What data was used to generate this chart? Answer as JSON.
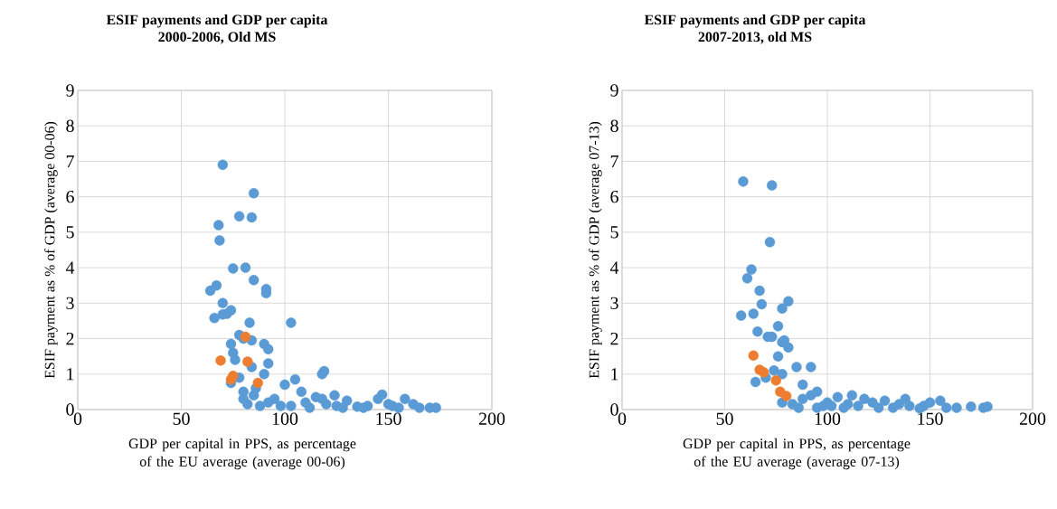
{
  "chart_data": [
    {
      "type": "scatter",
      "title": "ESIF payments and GDP per capita",
      "subtitle": "2000-2006, Old MS",
      "xlabel": "GDP per capital in PPS, as percentage of the EU average (average 00-06)",
      "ylabel": "ESIF payment as % of GDP (average 00-06)",
      "xlim": [
        0,
        200
      ],
      "xticks": [
        0,
        50,
        100,
        150,
        200
      ],
      "ylim": [
        0,
        9
      ],
      "yticks": [
        0,
        1,
        2,
        3,
        4,
        5,
        6,
        7,
        8,
        9
      ],
      "grid": true,
      "marker": "circle",
      "series": [
        {
          "color": "#5b9bd5",
          "x": [
            70,
            85,
            78,
            84,
            68,
            68.5,
            75,
            81,
            85,
            64,
            67,
            91,
            91,
            70,
            72,
            70,
            74,
            66,
            83,
            103,
            78,
            80,
            84,
            90,
            92,
            74,
            75,
            76,
            92,
            84,
            78,
            74,
            90,
            118,
            119,
            105,
            80,
            85,
            95,
            100,
            108,
            110,
            115,
            120,
            125,
            130,
            135,
            140,
            145,
            147,
            150,
            155,
            158,
            162,
            165,
            170,
            173,
            82,
            88,
            92,
            98,
            103,
            112,
            118,
            124,
            128,
            138,
            152,
            80,
            86
          ],
          "values": [
            6.9,
            6.1,
            5.45,
            5.42,
            5.2,
            4.77,
            3.98,
            4.0,
            3.65,
            3.35,
            3.5,
            3.4,
            3.28,
            3.0,
            2.7,
            2.68,
            2.8,
            2.58,
            2.45,
            2.45,
            2.1,
            2.0,
            1.95,
            1.85,
            1.7,
            1.85,
            1.6,
            1.4,
            1.3,
            1.2,
            0.9,
            0.75,
            1.0,
            1.0,
            1.08,
            0.85,
            0.5,
            0.4,
            0.3,
            0.7,
            0.5,
            0.2,
            0.35,
            0.15,
            0.1,
            0.25,
            0.08,
            0.1,
            0.3,
            0.42,
            0.15,
            0.05,
            0.3,
            0.15,
            0.05,
            0.05,
            0.05,
            0.15,
            0.1,
            0.2,
            0.1,
            0.1,
            0.05,
            0.3,
            0.4,
            0.05,
            0.05,
            0.1,
            0.3,
            0.6
          ]
        },
        {
          "color": "#ed7d31",
          "x": [
            69,
            81,
            82,
            75,
            74,
            87
          ],
          "values": [
            1.38,
            2.05,
            1.35,
            0.95,
            0.85,
            0.75
          ]
        }
      ]
    },
    {
      "type": "scatter",
      "title": "ESIF payments and GDP per capita",
      "subtitle": "2007-2013, old MS",
      "xlabel": "GDP per capital in PPS, as percentage of the EU average (average 07-13)",
      "ylabel": "ESIF payment as % of GDP (average 07-13)",
      "xlim": [
        0,
        200
      ],
      "xticks": [
        0,
        50,
        100,
        150,
        200
      ],
      "ylim": [
        0,
        9
      ],
      "yticks": [
        0,
        1,
        2,
        3,
        4,
        5,
        6,
        7,
        8,
        9
      ],
      "grid": true,
      "marker": "circle",
      "series": [
        {
          "color": "#5b9bd5",
          "x": [
            59,
            73,
            72,
            63,
            61,
            67,
            68,
            58,
            64,
            71,
            73,
            76,
            78,
            81,
            79,
            81,
            66,
            76,
            78,
            65,
            70,
            74,
            78,
            85,
            92,
            88,
            92,
            95,
            78,
            83,
            88,
            100,
            105,
            110,
            112,
            118,
            122,
            128,
            135,
            140,
            147,
            150,
            155,
            158,
            163,
            170,
            176,
            178,
            98,
            108,
            125,
            132,
            145,
            86,
            95,
            115,
            138,
            102
          ],
          "values": [
            6.43,
            6.32,
            4.72,
            3.95,
            3.7,
            3.35,
            2.97,
            2.65,
            2.7,
            2.05,
            2.05,
            2.35,
            2.85,
            3.05,
            1.95,
            1.75,
            2.2,
            1.5,
            1.9,
            0.78,
            0.9,
            1.1,
            1.0,
            1.2,
            1.2,
            0.7,
            0.4,
            0.5,
            0.2,
            0.15,
            0.3,
            0.2,
            0.35,
            0.15,
            0.4,
            0.3,
            0.2,
            0.25,
            0.15,
            0.1,
            0.1,
            0.2,
            0.25,
            0.05,
            0.05,
            0.08,
            0.05,
            0.08,
            0.1,
            0.05,
            0.05,
            0.05,
            0.03,
            0.05,
            0.05,
            0.1,
            0.3,
            0.1
          ]
        },
        {
          "color": "#ed7d31",
          "x": [
            64,
            67,
            69,
            75,
            77,
            80
          ],
          "values": [
            1.52,
            1.12,
            1.05,
            0.82,
            0.5,
            0.38
          ]
        }
      ]
    }
  ]
}
